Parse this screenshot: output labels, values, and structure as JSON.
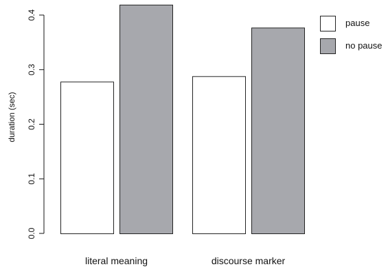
{
  "chart_data": {
    "type": "bar",
    "title": "",
    "xlabel": "",
    "ylabel": "duration (sec)",
    "ylim": [
      0,
      0.42
    ],
    "yticks": [
      "0.0",
      "0.1",
      "0.2",
      "0.3",
      "0.4"
    ],
    "categories": [
      "literal meaning",
      "discourse marker"
    ],
    "series": [
      {
        "name": "pause",
        "values": [
          0.278,
          0.288
        ],
        "color": "#ffffff"
      },
      {
        "name": "no pause",
        "values": [
          0.419,
          0.377
        ],
        "color": "#a7a8ad"
      }
    ],
    "grid": false,
    "legend": "top-right"
  }
}
